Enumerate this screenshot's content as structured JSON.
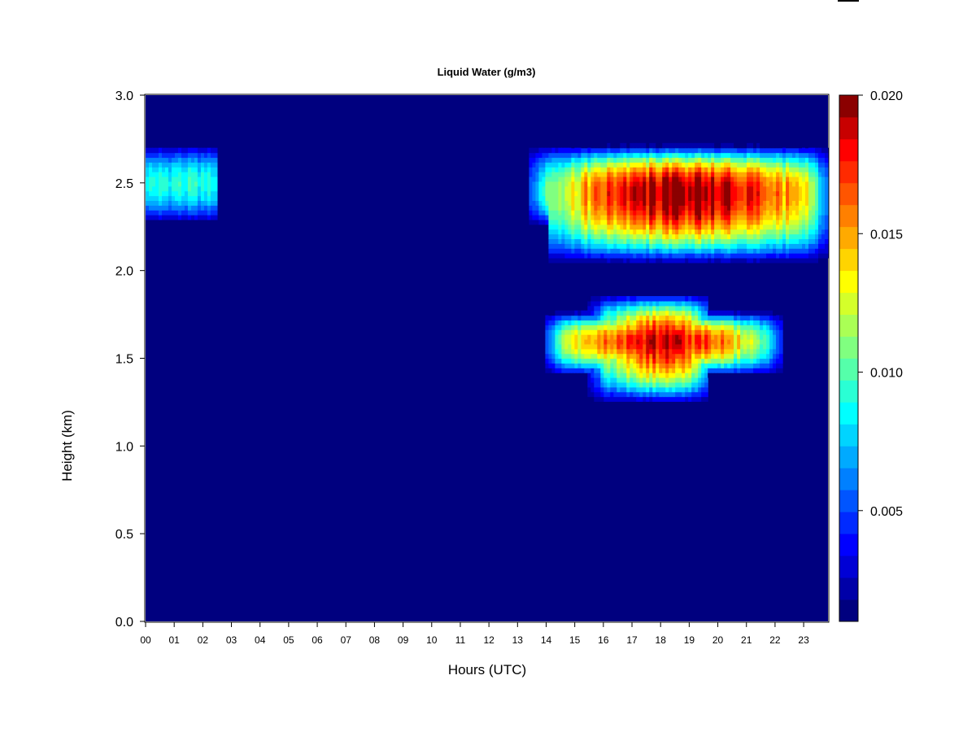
{
  "chart_data": {
    "type": "heatmap",
    "title": "Liquid Water (g/m3)",
    "xlabel": "Hours (UTC)",
    "ylabel": "Height (km)",
    "xlim": [
      0,
      23.85
    ],
    "ylim": [
      0.0,
      3.0
    ],
    "x_ticks": [
      "00",
      "01",
      "02",
      "03",
      "04",
      "05",
      "06",
      "07",
      "08",
      "09",
      "10",
      "11",
      "12",
      "13",
      "14",
      "15",
      "16",
      "17",
      "18",
      "19",
      "20",
      "21",
      "22",
      "23"
    ],
    "y_ticks": [
      "0.0",
      "0.5",
      "1.0",
      "1.5",
      "2.0",
      "2.5",
      "3.0"
    ],
    "colorbar": {
      "min": 0.001,
      "max": 0.02,
      "ticks": [
        "0.005",
        "0.010",
        "0.015",
        "0.020"
      ],
      "tick_values": [
        0.005,
        0.01,
        0.015,
        0.02
      ],
      "colors": [
        "#00007F",
        "#0000A8",
        "#0000D5",
        "#0000FF",
        "#002AFF",
        "#0055FF",
        "#0080FF",
        "#00AAFF",
        "#00D4FF",
        "#00FFFF",
        "#2AFFD4",
        "#55FFAA",
        "#80FF80",
        "#AAFF55",
        "#D4FF2A",
        "#FFFF00",
        "#FFD400",
        "#FFAA00",
        "#FF8000",
        "#FF5500",
        "#FF2A00",
        "#FF0000",
        "#C80000",
        "#8B0000"
      ]
    },
    "background_value": 0.001,
    "cloud_layers": [
      {
        "t_start": 0.0,
        "t_end": 2.5,
        "z_bottom": 2.27,
        "z_top": 2.72,
        "z_peak": 2.5,
        "peak_value": 0.01
      },
      {
        "t_start": 13.4,
        "t_end": 23.85,
        "z_bottom": 2.04,
        "z_top": 2.72,
        "z_peak": 2.45,
        "peak_value": 0.02,
        "t_peak": 18.9,
        "full_depth_start": 14.1
      },
      {
        "t_start": 14.0,
        "t_end": 22.3,
        "z_bottom": 1.4,
        "z_top": 1.77,
        "z_peak": 1.6,
        "peak_value": 0.018,
        "t_peak": 18.0
      },
      {
        "t_start": 15.5,
        "t_end": 19.7,
        "z_bottom": 1.24,
        "z_top": 1.87,
        "z_peak": 1.6,
        "peak_value": 0.018,
        "t_peak": 18.0
      }
    ],
    "grid": false,
    "legend": "colorbar-right"
  }
}
